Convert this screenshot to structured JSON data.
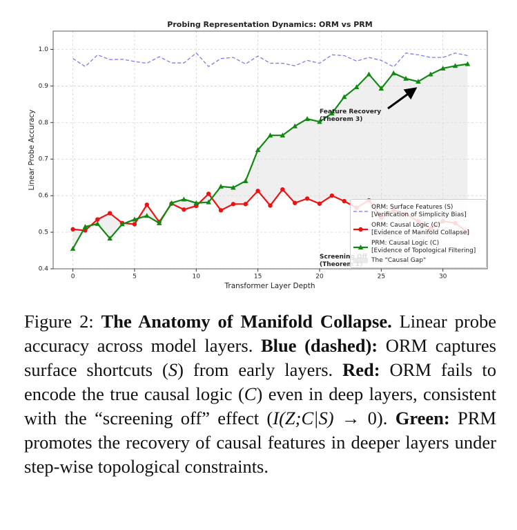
{
  "chart_data": {
    "type": "line",
    "title": "Probing Representation Dynamics: ORM vs PRM",
    "xlabel": "Transformer Layer Depth",
    "ylabel": "Linear Probe Accuracy",
    "x": [
      0,
      1,
      2,
      3,
      4,
      5,
      6,
      7,
      8,
      9,
      10,
      11,
      12,
      13,
      14,
      15,
      16,
      17,
      18,
      19,
      20,
      21,
      22,
      23,
      24,
      25,
      26,
      27,
      28,
      29,
      30,
      31,
      32
    ],
    "series": [
      {
        "name": "ORM: Surface Features (S)\n[Verification of Simplicity Bias]",
        "color": "#7b7bf0",
        "dashed": true,
        "marker": "none",
        "values": [
          0.975,
          0.953,
          0.985,
          0.972,
          0.973,
          0.967,
          0.962,
          0.98,
          0.963,
          0.963,
          0.99,
          0.953,
          0.975,
          0.978,
          0.96,
          0.982,
          0.962,
          0.962,
          0.955,
          0.97,
          0.962,
          0.985,
          0.983,
          0.968,
          0.978,
          0.97,
          0.952,
          0.99,
          0.985,
          0.978,
          0.978,
          0.99,
          0.983
        ]
      },
      {
        "name": "ORM: Causal Logic (C)\n[Evidence of Manifold Collapse]",
        "color": "#ee1111",
        "dashed": false,
        "marker": "circle",
        "values": [
          0.508,
          0.505,
          0.535,
          0.552,
          0.525,
          0.522,
          0.575,
          0.528,
          0.578,
          0.562,
          0.572,
          0.605,
          0.56,
          0.577,
          0.577,
          0.613,
          0.573,
          0.617,
          0.58,
          0.592,
          0.578,
          0.6,
          0.585,
          0.567,
          0.587,
          0.54,
          0.56,
          0.55,
          0.53,
          0.51,
          0.53,
          0.525,
          0.5
        ]
      },
      {
        "name": "PRM: Causal Logic (C)\n[Evidence of Topological Filtering]",
        "color": "#118811",
        "dashed": false,
        "marker": "triangle",
        "values": [
          0.455,
          0.515,
          0.523,
          0.483,
          0.522,
          0.535,
          0.545,
          0.525,
          0.58,
          0.59,
          0.58,
          0.582,
          0.625,
          0.622,
          0.64,
          0.725,
          0.765,
          0.765,
          0.79,
          0.81,
          0.802,
          0.825,
          0.87,
          0.897,
          0.932,
          0.893,
          0.935,
          0.92,
          0.912,
          0.932,
          0.948,
          0.955,
          0.96
        ]
      }
    ],
    "gap": {
      "name": "The \"Causal Gap\"",
      "color": "#dcdcdc"
    },
    "annotations": [
      "Feature Recovery\n(Theorem 3)",
      "Screening Off\n(Theorem 1)"
    ],
    "xlim": [
      -1.6,
      33.6
    ],
    "xticks": [
      0,
      5,
      10,
      15,
      20,
      25,
      30
    ],
    "ylim": [
      0.4,
      1.05
    ],
    "yticks": [
      0.4,
      0.5,
      0.6,
      0.7,
      0.8,
      0.9,
      {
        "value": 1,
        "label": "1.0"
      }
    ],
    "grid": true,
    "legend": "lower right"
  },
  "caption": [
    "Figure 2: ",
    "The Anatomy of Manifold Collapse.",
    " Linear probe accuracy across model layers. ",
    "Blue (dashed):",
    " ORM captures surface shortcuts (",
    "S",
    ") from early layers. ",
    "Red:",
    " ORM fails to encode the true causal logic (",
    "C",
    ") even in deep layers, consistent with the “screening off” effect (",
    "I(Z;C|S)",
    " → 0). ",
    "Green:",
    " PRM promotes the recovery of causal features in deeper layers under step-wise topological constraints."
  ]
}
